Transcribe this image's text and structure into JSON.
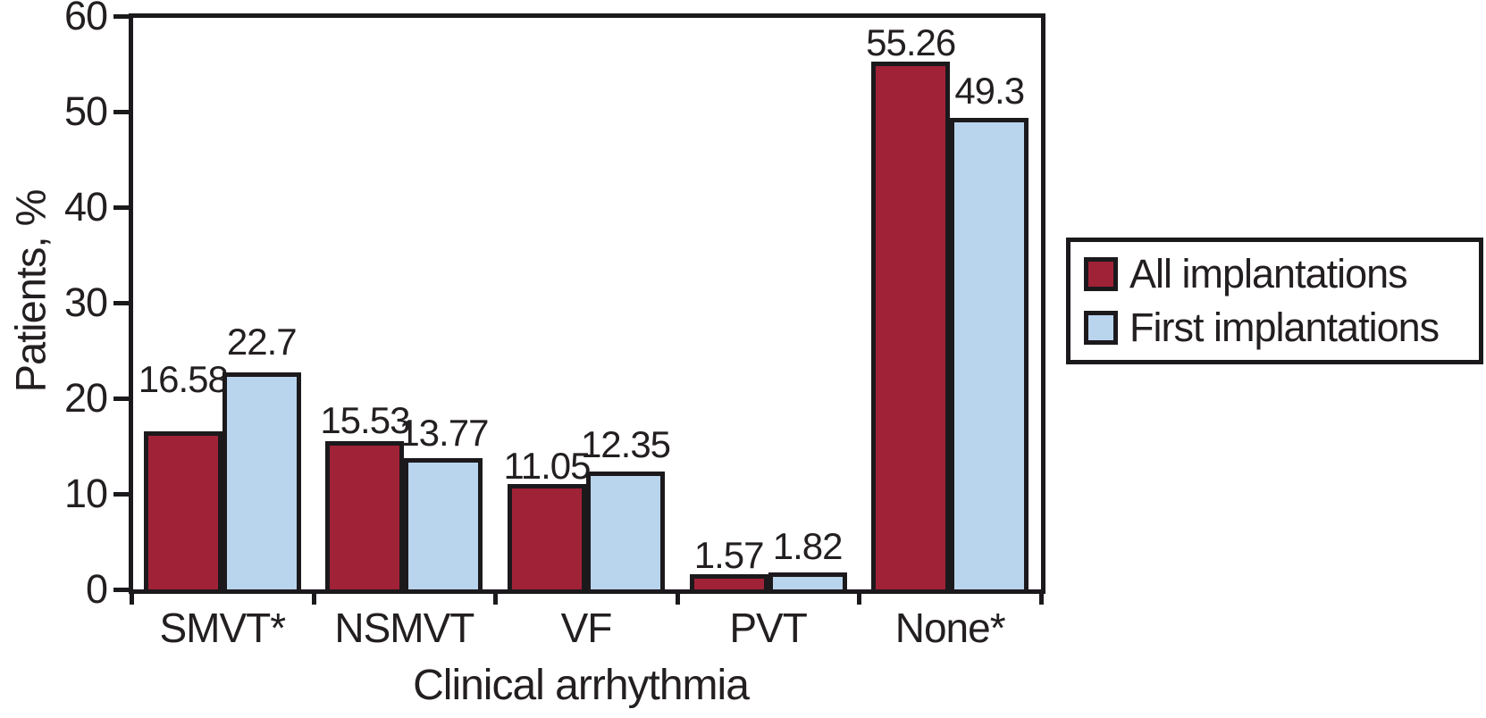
{
  "chart_data": {
    "type": "bar",
    "title": "",
    "xlabel": "Clinical arrhythmia",
    "ylabel": "Patients, %",
    "categories": [
      "SMVT*",
      "NSMVT",
      "VF",
      "PVT",
      "None*"
    ],
    "series": [
      {
        "name": "All implantations",
        "color": "#A02237",
        "values": [
          16.58,
          15.53,
          11.05,
          1.57,
          55.26
        ]
      },
      {
        "name": "First implantations",
        "color": "#B9D4ED",
        "values": [
          22.7,
          13.77,
          12.35,
          1.82,
          49.3
        ]
      }
    ],
    "value_labels": {
      "All implantations": [
        "16.58",
        "15.53",
        "11.05",
        "1.57",
        "55.26"
      ],
      "First implantations": [
        "22.7",
        "13.77",
        "12.35",
        "1.82",
        "49.3"
      ]
    },
    "ylim": [
      0,
      60
    ],
    "yticks": [
      0,
      10,
      20,
      30,
      40,
      50,
      60
    ],
    "grid": false,
    "plot_frame": true,
    "legend_position": "right-outside",
    "axis_color": "#1C191D",
    "text_color": "#231F20",
    "background_color": "#FFFFFF"
  }
}
